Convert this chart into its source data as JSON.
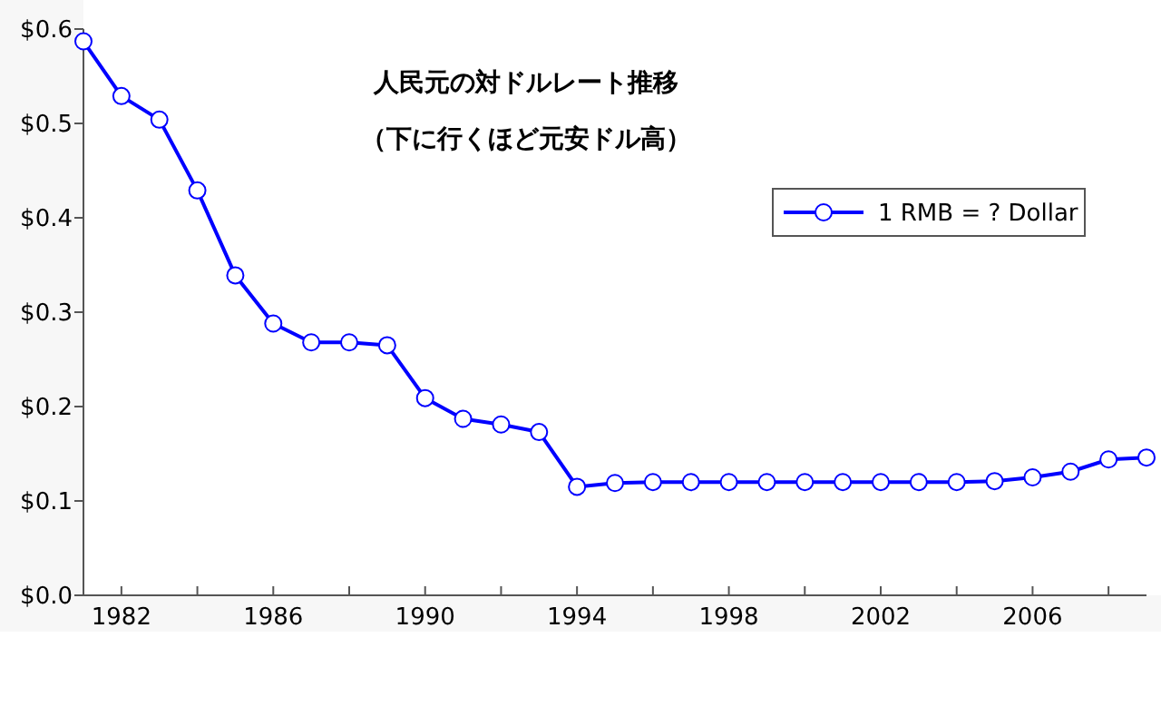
{
  "chart_data": {
    "type": "line",
    "title": "人民元の対ドルレート推移",
    "subtitle": "（下に行くほど元安ドル高）",
    "x": [
      1981,
      1982,
      1983,
      1984,
      1985,
      1986,
      1987,
      1988,
      1989,
      1990,
      1991,
      1992,
      1993,
      1994,
      1995,
      1996,
      1997,
      1998,
      1999,
      2000,
      2001,
      2002,
      2003,
      2004,
      2005,
      2006,
      2007,
      2008,
      2009
    ],
    "series": [
      {
        "name": "1 RMB = ? Dollar",
        "color": "#0000ff",
        "values": [
          0.587,
          0.529,
          0.504,
          0.429,
          0.339,
          0.288,
          0.268,
          0.268,
          0.265,
          0.209,
          0.187,
          0.181,
          0.173,
          0.115,
          0.119,
          0.12,
          0.12,
          0.12,
          0.12,
          0.12,
          0.12,
          0.12,
          0.12,
          0.12,
          0.121,
          0.125,
          0.131,
          0.144,
          0.146
        ]
      }
    ],
    "xlim": [
      1981,
      2009
    ],
    "ylim": [
      0,
      0.6
    ],
    "xticks": [
      1982,
      {
        "value": 1984,
        "label": null
      },
      1986,
      {
        "value": 1988,
        "label": null
      },
      1990,
      {
        "value": 1992,
        "label": null
      },
      1994,
      {
        "value": 1996,
        "label": null
      },
      1998,
      {
        "value": 2000,
        "label": null
      },
      2002,
      {
        "value": 2004,
        "label": null
      },
      2006,
      {
        "value": 2008,
        "label": null
      }
    ],
    "yticks": [
      {
        "value": 0,
        "label": "$0.0"
      },
      {
        "value": 0.1,
        "label": "$0.1"
      },
      {
        "value": 0.2,
        "label": "$0.2"
      },
      {
        "value": 0.3,
        "label": "$0.3"
      },
      {
        "value": 0.4,
        "label": "$0.4"
      },
      {
        "value": 0.5,
        "label": "$0.5"
      },
      {
        "value": 0.6,
        "label": "$0.6"
      }
    ],
    "grid": false,
    "legend": "top right",
    "marker": "circle",
    "line_style": "solid"
  }
}
